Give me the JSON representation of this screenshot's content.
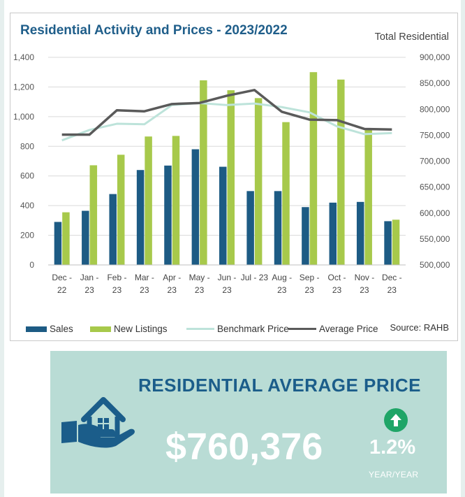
{
  "chart_data": {
    "type": "bar+line",
    "title": "Residential Activity and Prices - 2023/2022",
    "y2label": "Total Residential",
    "source": "Source: RAHB",
    "categories": [
      [
        "Dec -",
        "22"
      ],
      [
        "Jan -",
        "23"
      ],
      [
        "Feb -",
        "23"
      ],
      [
        "Mar -",
        "23"
      ],
      [
        "Apr -",
        "23"
      ],
      [
        "May -",
        "23"
      ],
      [
        "Jun -",
        "23"
      ],
      [
        "Jul - 23",
        ""
      ],
      [
        "Aug -",
        "23"
      ],
      [
        "Sep -",
        "23"
      ],
      [
        "Oct -",
        "23"
      ],
      [
        "Nov -",
        "23"
      ],
      [
        "Dec -",
        "23"
      ]
    ],
    "y_ticks": [
      "0",
      "200",
      "400",
      "600",
      "800",
      "1,000",
      "1,200",
      "1,400"
    ],
    "y2_ticks": [
      "500,000",
      "550,000",
      "600,000",
      "650,000",
      "700,000",
      "750,000",
      "800,000",
      "850,000",
      "900,000"
    ],
    "ylim": [
      0,
      1400
    ],
    "y2lim": [
      500000,
      900000
    ],
    "series": [
      {
        "name": "Sales",
        "type": "bar",
        "color": "#1d5b84",
        "values": [
          290,
          365,
          478,
          640,
          670,
          780,
          662,
          498,
          498,
          390,
          420,
          425,
          295
        ]
      },
      {
        "name": "New Listings",
        "type": "bar",
        "color": "#a7c94b",
        "values": [
          355,
          672,
          743,
          866,
          870,
          1245,
          1178,
          1125,
          963,
          1300,
          1250,
          916,
          305
        ]
      },
      {
        "name": "Benchmark Price",
        "type": "line",
        "color": "#bde3da",
        "values": [
          740000,
          760000,
          772000,
          771000,
          808000,
          812000,
          808000,
          811000,
          804000,
          794000,
          767000,
          752000,
          754000
        ]
      },
      {
        "name": "Average Price",
        "type": "line",
        "color": "#5a5a5a",
        "values": [
          751000,
          751000,
          798000,
          796000,
          810000,
          812000,
          826000,
          837000,
          795000,
          780000,
          779000,
          762000,
          761000
        ]
      }
    ],
    "grid": true,
    "legend": "bottom-left"
  },
  "summary": {
    "title": "RESIDENTIAL AVERAGE PRICE",
    "value": "$760,376",
    "change": "1.2%",
    "change_label": "YEAR/YEAR",
    "direction": "up"
  },
  "icons": {
    "house": "house-hand-icon",
    "arrow": "arrow-up-circle-icon"
  }
}
